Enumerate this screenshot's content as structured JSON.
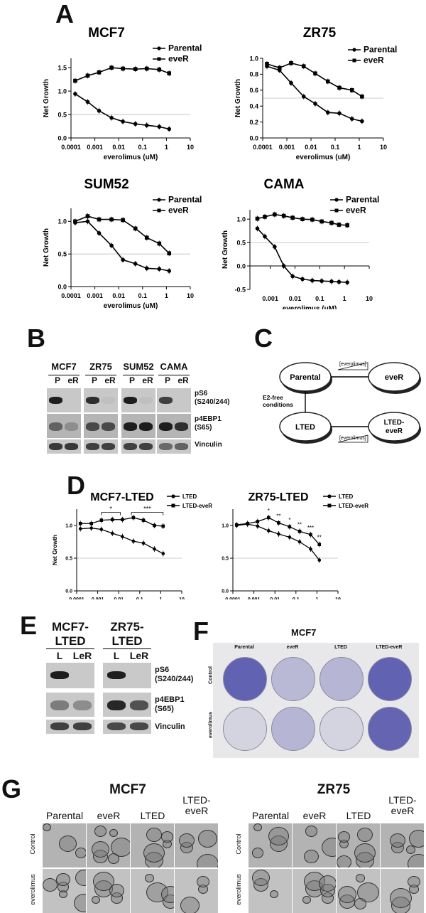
{
  "panels": {
    "A": "A",
    "B": "B",
    "C": "C",
    "D": "D",
    "E": "E",
    "F": "F",
    "G": "G"
  },
  "legend_parental_ever": [
    "Parental",
    "eveR"
  ],
  "legend_lted": [
    "LTED",
    "LTED-eveR"
  ],
  "xlabel": "everolimus (uM)",
  "ylabel": "Net Growth",
  "chart_data": [
    {
      "type": "line",
      "title": "MCF7",
      "xlabel": "everolimus (uM)",
      "ylabel": "Net Growth",
      "xscale": "log",
      "xlim": [
        0.0001,
        10
      ],
      "ylim": [
        0,
        1.7
      ],
      "xticks": [
        "0.0001",
        "0.001",
        "0.01",
        "0.1",
        "1",
        "10"
      ],
      "yticks": [
        "0.0",
        "0.5",
        "1.0",
        "1.5"
      ],
      "refline": 0.5,
      "x": [
        0.00015,
        0.0005,
        0.0015,
        0.005,
        0.015,
        0.05,
        0.15,
        0.5,
        1.3
      ],
      "series": [
        {
          "name": "Parental",
          "values": [
            0.94,
            0.77,
            0.58,
            0.43,
            0.35,
            0.3,
            0.27,
            0.24,
            0.19
          ]
        },
        {
          "name": "eveR",
          "values": [
            1.22,
            1.33,
            1.4,
            1.5,
            1.48,
            1.47,
            1.48,
            1.46,
            1.38
          ]
        }
      ]
    },
    {
      "type": "line",
      "title": "ZR75",
      "xlabel": "everolimus (uM)",
      "ylabel": "Net Growth",
      "xscale": "log",
      "xlim": [
        0.0001,
        10
      ],
      "ylim": [
        0,
        1.0
      ],
      "xticks": [
        "0.0001",
        "0.001",
        "0.01",
        "0.1",
        "1",
        "10"
      ],
      "yticks": [
        "0.0",
        "0.2",
        "0.4",
        "0.6",
        "0.8",
        "1.0"
      ],
      "refline": 0.5,
      "x": [
        0.00015,
        0.0005,
        0.0015,
        0.005,
        0.015,
        0.05,
        0.15,
        0.5,
        1.3
      ],
      "series": [
        {
          "name": "Parental",
          "values": [
            0.9,
            0.85,
            0.69,
            0.52,
            0.43,
            0.32,
            0.31,
            0.24,
            0.21
          ]
        },
        {
          "name": "eveR",
          "values": [
            0.93,
            0.88,
            0.94,
            0.9,
            0.81,
            0.71,
            0.63,
            0.6,
            0.52
          ]
        }
      ]
    },
    {
      "type": "line",
      "title": "SUM52",
      "xlabel": "everolimus (uM)",
      "ylabel": "Net Growth",
      "xscale": "log",
      "xlim": [
        0.0001,
        10
      ],
      "ylim": [
        0,
        1.2
      ],
      "xticks": [
        "0.0001",
        "0.001",
        "0.01",
        "0.1",
        "1",
        "10"
      ],
      "yticks": [
        "0.0",
        "0.5",
        "1.0"
      ],
      "refline": 0.5,
      "x": [
        0.00015,
        0.0005,
        0.0015,
        0.005,
        0.015,
        0.05,
        0.15,
        0.5,
        1.3
      ],
      "series": [
        {
          "name": "Parental",
          "values": [
            0.98,
            1.0,
            0.82,
            0.63,
            0.41,
            0.35,
            0.28,
            0.27,
            0.24
          ]
        },
        {
          "name": "eveR",
          "values": [
            1.0,
            1.08,
            1.03,
            1.03,
            1.02,
            0.89,
            0.75,
            0.66,
            0.51
          ]
        }
      ]
    },
    {
      "type": "line",
      "title": "CAMA",
      "xlabel": "everolimus (uM)",
      "ylabel": "Net Growth",
      "xscale": "log",
      "xlim": [
        0.00015,
        10
      ],
      "ylim": [
        -0.5,
        1.2
      ],
      "xticks": [
        "0.001",
        "0.01",
        "0.1",
        "1",
        "10"
      ],
      "yticks": [
        "-0.5",
        "0.0",
        "0.5",
        "1.0"
      ],
      "refline": 0.5,
      "x": [
        0.0003,
        0.0006,
        0.0015,
        0.0035,
        0.008,
        0.02,
        0.05,
        0.12,
        0.3,
        0.6,
        1.3
      ],
      "series": [
        {
          "name": "Parental",
          "values": [
            0.8,
            0.63,
            0.41,
            0.0,
            -0.22,
            -0.28,
            -0.31,
            -0.32,
            -0.33,
            -0.34,
            -0.35
          ]
        },
        {
          "name": "eveR",
          "values": [
            1.01,
            1.05,
            1.1,
            1.07,
            1.03,
            1.0,
            0.99,
            0.95,
            0.92,
            0.88,
            0.87
          ]
        }
      ]
    },
    {
      "type": "line",
      "title": "MCF7-LTED",
      "xlabel": "everolimus (uM)",
      "ylabel": "Net Growth",
      "xscale": "log",
      "xlim": [
        0.0001,
        10
      ],
      "ylim": [
        0,
        1.25
      ],
      "xticks": [
        "0.0001",
        "0.001",
        "0.01",
        "0.1",
        "1",
        "10"
      ],
      "yticks": [
        "0.0",
        "0.5",
        "1.0"
      ],
      "refline": 0.5,
      "x": [
        0.00015,
        0.0005,
        0.0015,
        0.005,
        0.015,
        0.05,
        0.15,
        0.5,
        1.3
      ],
      "series": [
        {
          "name": "LTED",
          "values": [
            0.95,
            0.96,
            0.94,
            0.88,
            0.83,
            0.76,
            0.73,
            0.64,
            0.57
          ]
        },
        {
          "name": "LTED-eveR",
          "values": [
            1.03,
            1.03,
            1.08,
            1.09,
            1.09,
            1.12,
            1.08,
            1.0,
            0.99
          ]
        }
      ],
      "annotations": [
        "*",
        "***"
      ]
    },
    {
      "type": "line",
      "title": "ZR75-LTED",
      "xlabel": "everolimus (uM)",
      "ylabel": "Net Growth",
      "xscale": "log",
      "xlim": [
        0.0001,
        10
      ],
      "ylim": [
        0,
        1.25
      ],
      "xticks": [
        "0.0001",
        "0.001",
        "0.01",
        "0.1",
        "1",
        "10"
      ],
      "yticks": [
        "0.0",
        "0.5",
        "1.0"
      ],
      "refline": 0.5,
      "x": [
        0.00015,
        0.0005,
        0.0015,
        0.005,
        0.015,
        0.05,
        0.15,
        0.5,
        1.3
      ],
      "series": [
        {
          "name": "LTED",
          "values": [
            1.0,
            1.02,
            0.99,
            0.92,
            0.87,
            0.82,
            0.75,
            0.64,
            0.47
          ]
        },
        {
          "name": "LTED-eveR",
          "values": [
            1.01,
            1.03,
            1.06,
            1.12,
            1.04,
            0.98,
            0.91,
            0.86,
            0.71
          ]
        }
      ],
      "annotations": [
        "*",
        "**",
        "*",
        "**",
        "***",
        "**"
      ]
    }
  ],
  "panelB": {
    "lines": [
      "MCF7",
      "ZR75",
      "SUM52",
      "CAMA"
    ],
    "lanes": [
      "P",
      "eR"
    ],
    "blots": [
      "pS6\n(S240/244)",
      "p4EBP1\n(S65)",
      "Vinculin"
    ]
  },
  "panelC": {
    "parental": "Parental",
    "ever": "eveR",
    "lted": "LTED",
    "lted_ever": "LTED-\neveR",
    "e2free": "E2-free\nconditions",
    "drug": "[everolimus]"
  },
  "panelE": {
    "lines": [
      "MCF7-\nLTED",
      "ZR75-\nLTED"
    ],
    "lanes": [
      "L",
      "LeR"
    ],
    "blots": [
      "pS6\n(S240/244)",
      "p4EBP1\n(S65)",
      "Vinculin"
    ]
  },
  "panelF": {
    "title": "MCF7",
    "cols": [
      "Parental",
      "eveR",
      "LTED",
      "LTED-eveR"
    ],
    "rows": [
      "Control",
      "everolimus"
    ]
  },
  "panelG": {
    "groups": [
      {
        "title": "MCF7",
        "cols": [
          "Parental",
          "eveR",
          "LTED",
          "LTED-\neveR"
        ],
        "rows": [
          "Control",
          "everolimus"
        ]
      },
      {
        "title": "ZR75",
        "cols": [
          "Parental",
          "eveR",
          "LTED",
          "LTED-\neveR"
        ],
        "rows": [
          "Control",
          "everolimus"
        ]
      }
    ]
  }
}
